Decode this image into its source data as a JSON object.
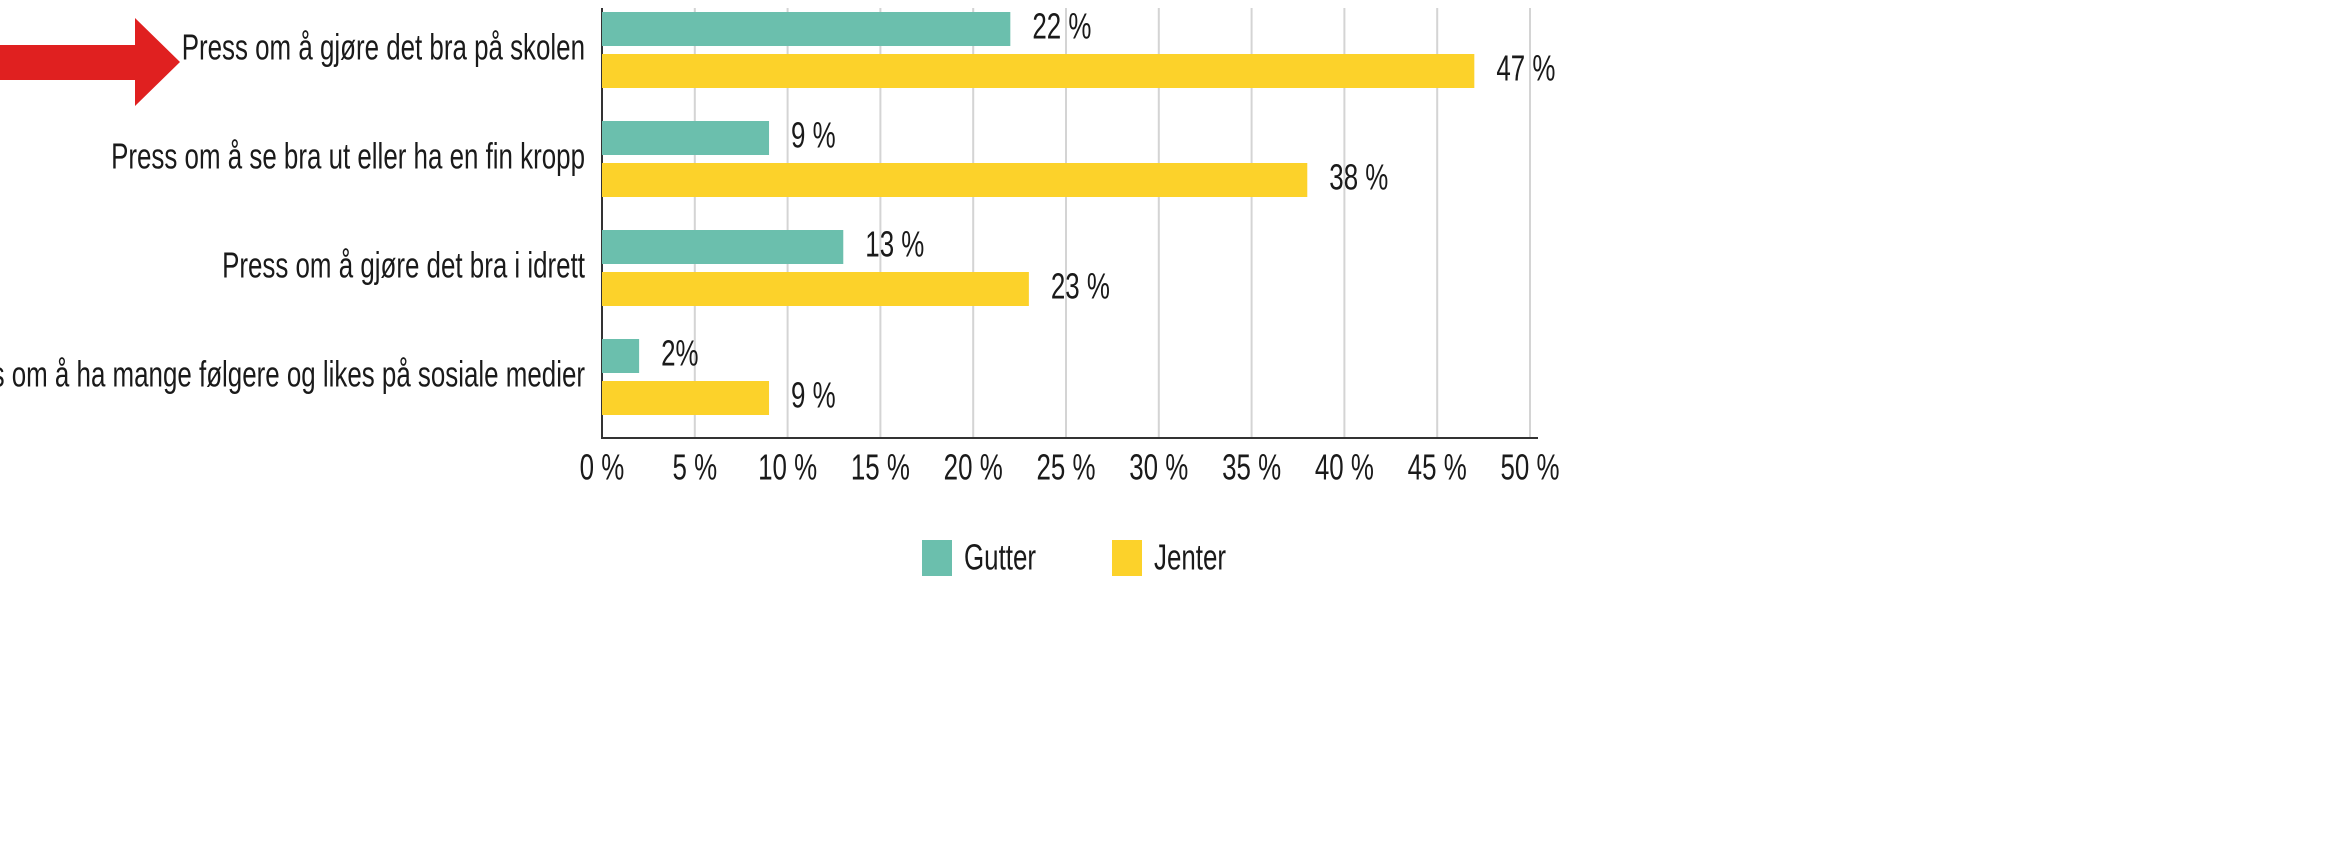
{
  "chart_data": {
    "type": "barh",
    "categories": [
      "Press om å gjøre det bra på skolen",
      "Press om å se bra ut eller ha en fin kropp",
      "Press om å gjøre det bra i idrett",
      "Press om å ha mange følgere og likes på sosiale medier"
    ],
    "series": [
      {
        "name": "Gutter",
        "color": "#6bbfad",
        "values": [
          22,
          9,
          13,
          2
        ],
        "value_labels": [
          "22 %",
          "9 %",
          "13 %",
          "2%"
        ]
      },
      {
        "name": "Jenter",
        "color": "#fcd22a",
        "values": [
          47,
          38,
          23,
          9
        ],
        "value_labels": [
          "47 %",
          "38 %",
          "23 %",
          "9 %"
        ]
      }
    ],
    "xlim": [
      0,
      50
    ],
    "xticks": [
      {
        "value": 0,
        "label": "0 %"
      },
      {
        "value": 5,
        "label": "5 %"
      },
      {
        "value": 10,
        "label": "10 %"
      },
      {
        "value": 15,
        "label": "15 %"
      },
      {
        "value": 20,
        "label": "20 %"
      },
      {
        "value": 25,
        "label": "25 %"
      },
      {
        "value": 30,
        "label": "30 %"
      },
      {
        "value": 35,
        "label": "35 %"
      },
      {
        "value": 40,
        "label": "40 %"
      },
      {
        "value": 45,
        "label": "45 %"
      },
      {
        "value": 50,
        "label": "50 %"
      }
    ],
    "grid": true,
    "legend": "bottom"
  }
}
